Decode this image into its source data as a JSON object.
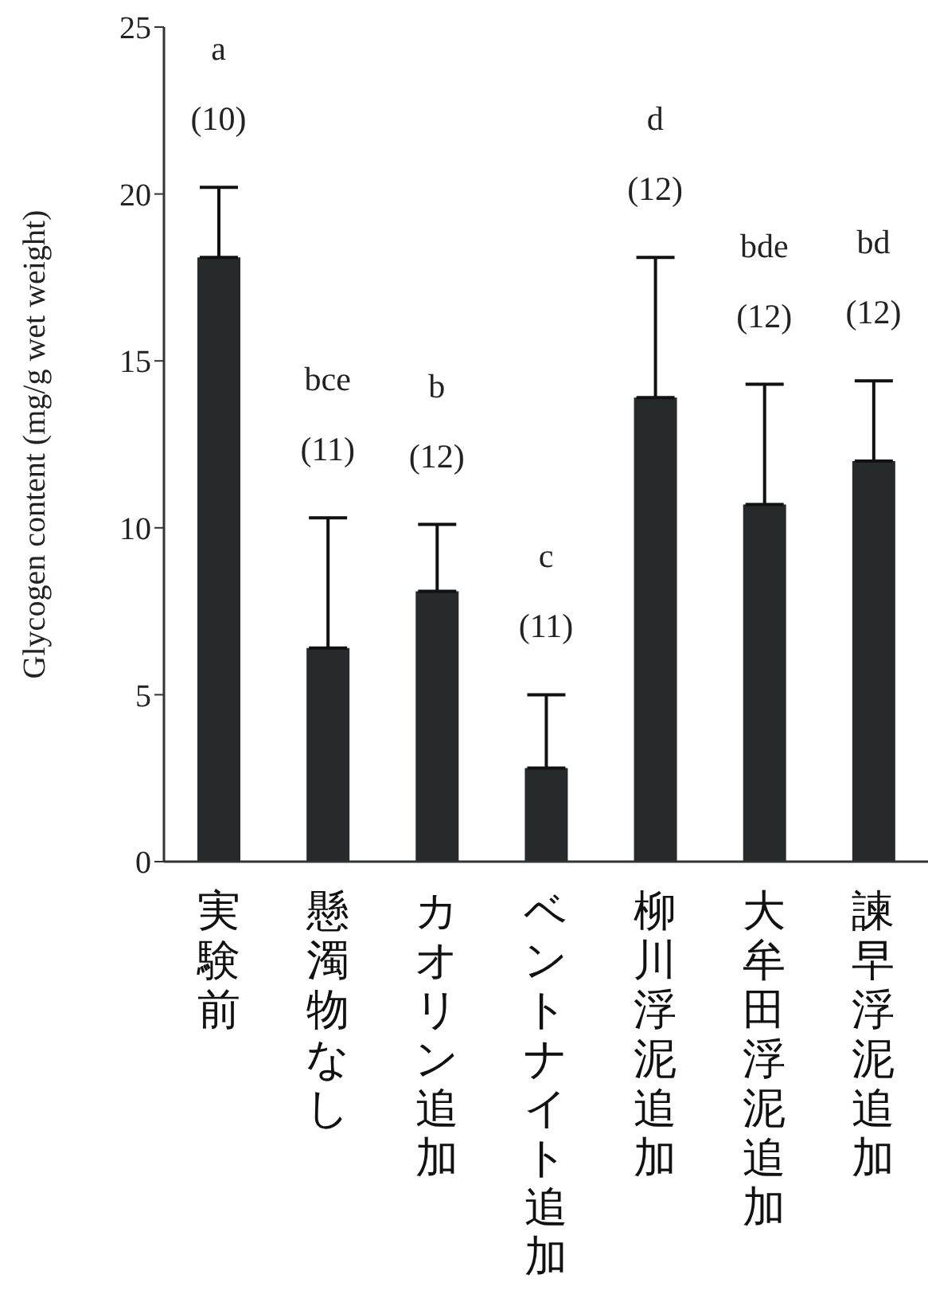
{
  "chart_data": {
    "type": "bar",
    "ylabel": "Glycogen content (mg/g wet weight)",
    "categories": [
      "実験前",
      "懸濁物なし",
      "カオリン追加",
      "ベントナイト追加",
      "柳川浮泥追加",
      "大牟田浮泥追加",
      "諫早浮泥追加"
    ],
    "values": [
      18.1,
      6.4,
      8.1,
      2.8,
      13.9,
      10.7,
      12.0
    ],
    "errors": [
      [
        18.1,
        20.2
      ],
      [
        6.4,
        10.3
      ],
      [
        8.1,
        10.1
      ],
      [
        2.8,
        5.0
      ],
      [
        13.9,
        18.1
      ],
      [
        10.7,
        14.3
      ],
      [
        12.0,
        14.4
      ]
    ],
    "color": "#262a2a",
    "ylim": [
      0,
      25
    ],
    "yticks": [
      0,
      5,
      10,
      15,
      20,
      25
    ],
    "grid": false,
    "legend": false,
    "annotations": [
      "a",
      "(10)",
      "bce",
      "(11)",
      "b",
      "(12)",
      "c",
      "(11)",
      "d",
      "(12)",
      "bde",
      "(12)",
      "bd",
      "(12)"
    ]
  }
}
